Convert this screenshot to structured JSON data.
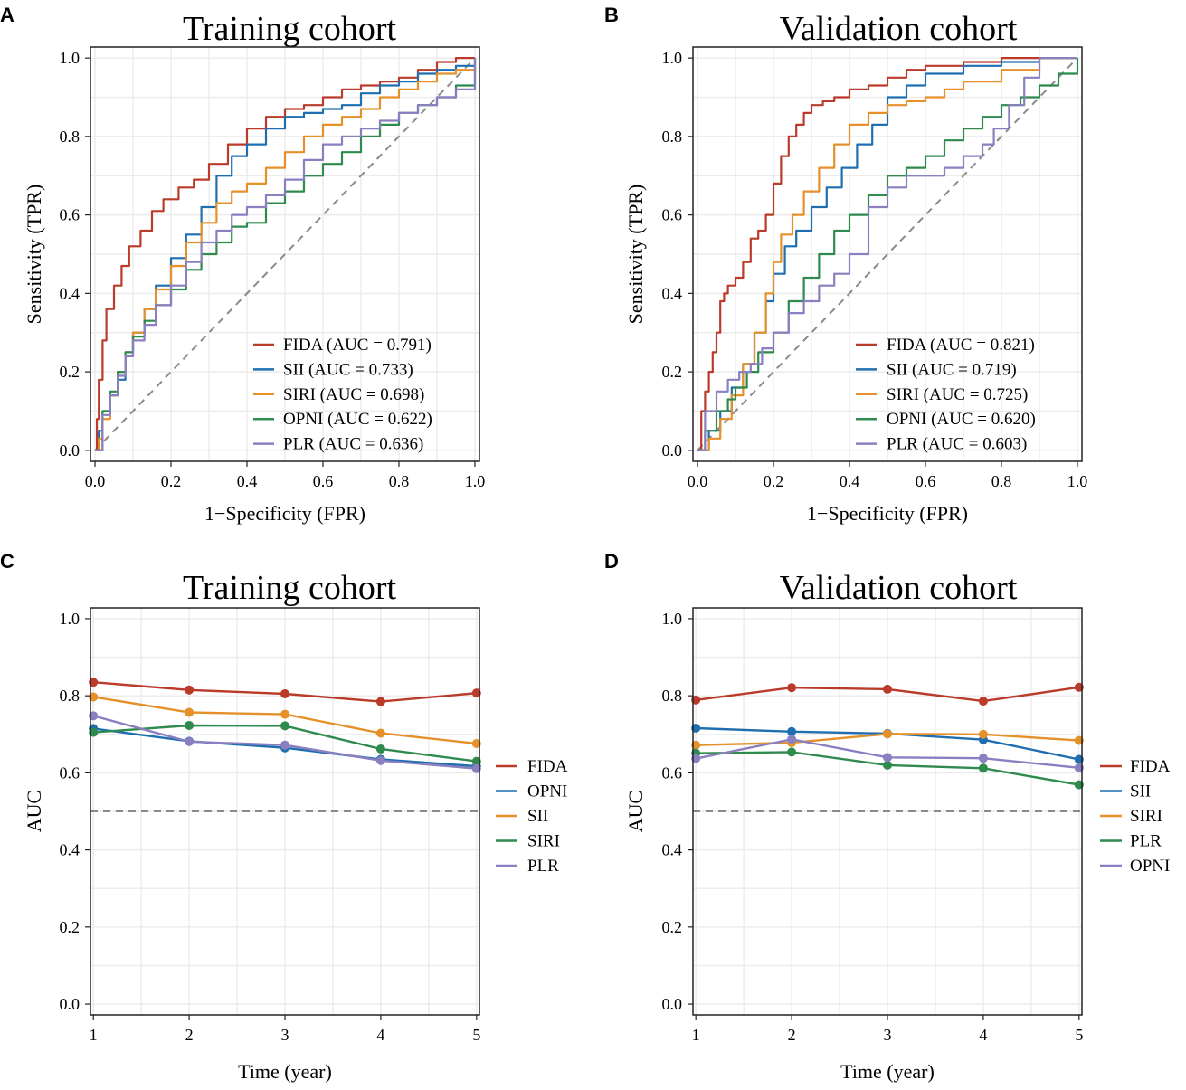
{
  "chart_data": [
    {
      "panel": "A",
      "type": "line",
      "title": "Training cohort",
      "xlabel": "1−Specificity (FPR)",
      "ylabel": "Sensitivity (TPR)",
      "xlim": [
        0,
        1
      ],
      "ylim": [
        0,
        1
      ],
      "xticks": [
        "0.0",
        "0.2",
        "0.4",
        "0.6",
        "0.8",
        "1.0"
      ],
      "yticks": [
        "0.0",
        "0.2",
        "0.4",
        "0.6",
        "0.8",
        "1.0"
      ],
      "grid": true,
      "legend_position": "bottom-right",
      "reference_line": "diagonal",
      "series": [
        {
          "name": "FIDA",
          "legend": "FIDA (AUC = 0.791)",
          "color": "#BB3B2A",
          "x": [
            0,
            0.005,
            0.01,
            0.02,
            0.03,
            0.05,
            0.07,
            0.09,
            0.12,
            0.15,
            0.18,
            0.22,
            0.26,
            0.3,
            0.35,
            0.4,
            0.45,
            0.5,
            0.55,
            0.6,
            0.65,
            0.7,
            0.75,
            0.8,
            0.85,
            0.9,
            0.95,
            1.0
          ],
          "y": [
            0,
            0.08,
            0.18,
            0.28,
            0.36,
            0.42,
            0.47,
            0.52,
            0.56,
            0.61,
            0.64,
            0.67,
            0.69,
            0.73,
            0.78,
            0.82,
            0.85,
            0.87,
            0.88,
            0.9,
            0.92,
            0.93,
            0.94,
            0.95,
            0.97,
            0.99,
            1.0,
            1.0
          ]
        },
        {
          "name": "SII",
          "legend": "SII (AUC = 0.733)",
          "color": "#1F6FB0",
          "x": [
            0,
            0.01,
            0.02,
            0.04,
            0.06,
            0.08,
            0.1,
            0.13,
            0.16,
            0.2,
            0.24,
            0.28,
            0.32,
            0.36,
            0.4,
            0.45,
            0.5,
            0.55,
            0.6,
            0.65,
            0.7,
            0.75,
            0.8,
            0.85,
            0.9,
            0.95,
            1.0
          ],
          "y": [
            0,
            0.05,
            0.1,
            0.14,
            0.18,
            0.24,
            0.3,
            0.36,
            0.42,
            0.49,
            0.55,
            0.62,
            0.7,
            0.75,
            0.78,
            0.82,
            0.85,
            0.86,
            0.87,
            0.88,
            0.91,
            0.93,
            0.94,
            0.96,
            0.97,
            0.98,
            1.0
          ]
        },
        {
          "name": "SIRI",
          "legend": "SIRI (AUC = 0.698)",
          "color": "#E6902A",
          "x": [
            0,
            0.01,
            0.02,
            0.04,
            0.06,
            0.08,
            0.1,
            0.13,
            0.16,
            0.2,
            0.24,
            0.28,
            0.32,
            0.36,
            0.4,
            0.45,
            0.5,
            0.55,
            0.6,
            0.65,
            0.7,
            0.75,
            0.8,
            0.85,
            0.9,
            0.95,
            1.0
          ],
          "y": [
            0,
            0.03,
            0.08,
            0.14,
            0.2,
            0.25,
            0.3,
            0.36,
            0.41,
            0.47,
            0.53,
            0.58,
            0.63,
            0.66,
            0.68,
            0.72,
            0.76,
            0.8,
            0.83,
            0.85,
            0.87,
            0.9,
            0.92,
            0.94,
            0.96,
            0.97,
            1.0
          ]
        },
        {
          "name": "OPNI",
          "legend": "OPNI (AUC = 0.622)",
          "color": "#2F8A4E",
          "x": [
            0,
            0.02,
            0.04,
            0.06,
            0.08,
            0.1,
            0.13,
            0.16,
            0.2,
            0.24,
            0.28,
            0.32,
            0.36,
            0.4,
            0.45,
            0.5,
            0.55,
            0.6,
            0.65,
            0.7,
            0.75,
            0.8,
            0.85,
            0.9,
            0.95,
            1.0
          ],
          "y": [
            0,
            0.1,
            0.15,
            0.2,
            0.25,
            0.29,
            0.33,
            0.37,
            0.41,
            0.46,
            0.5,
            0.53,
            0.57,
            0.58,
            0.63,
            0.66,
            0.7,
            0.73,
            0.76,
            0.8,
            0.83,
            0.86,
            0.88,
            0.9,
            0.93,
            1.0
          ]
        },
        {
          "name": "PLR",
          "legend": "PLR (AUC = 0.636)",
          "color": "#8A7FC0",
          "x": [
            0,
            0.02,
            0.04,
            0.06,
            0.08,
            0.1,
            0.13,
            0.16,
            0.2,
            0.24,
            0.28,
            0.32,
            0.36,
            0.4,
            0.45,
            0.5,
            0.55,
            0.6,
            0.65,
            0.7,
            0.75,
            0.8,
            0.85,
            0.9,
            0.95,
            1.0
          ],
          "y": [
            0,
            0.09,
            0.14,
            0.19,
            0.24,
            0.28,
            0.32,
            0.37,
            0.42,
            0.48,
            0.53,
            0.56,
            0.6,
            0.62,
            0.65,
            0.69,
            0.74,
            0.78,
            0.8,
            0.82,
            0.84,
            0.86,
            0.88,
            0.9,
            0.92,
            1.0
          ]
        }
      ]
    },
    {
      "panel": "B",
      "type": "line",
      "title": "Validation cohort",
      "xlabel": "1−Specificity (FPR)",
      "ylabel": "Sensitivity (TPR)",
      "xlim": [
        0,
        1
      ],
      "ylim": [
        0,
        1
      ],
      "xticks": [
        "0.0",
        "0.2",
        "0.4",
        "0.6",
        "0.8",
        "1.0"
      ],
      "yticks": [
        "0.0",
        "0.2",
        "0.4",
        "0.6",
        "0.8",
        "1.0"
      ],
      "grid": true,
      "legend_position": "bottom-right",
      "reference_line": "diagonal",
      "series": [
        {
          "name": "FIDA",
          "legend": "FIDA (AUC = 0.821)",
          "color": "#BB3B2A",
          "x": [
            0,
            0.01,
            0.02,
            0.03,
            0.04,
            0.05,
            0.06,
            0.07,
            0.08,
            0.1,
            0.12,
            0.14,
            0.16,
            0.18,
            0.2,
            0.22,
            0.24,
            0.26,
            0.28,
            0.3,
            0.33,
            0.36,
            0.4,
            0.45,
            0.5,
            0.55,
            0.6,
            0.7,
            0.8,
            0.9,
            1.0
          ],
          "y": [
            0,
            0.1,
            0.15,
            0.2,
            0.25,
            0.3,
            0.38,
            0.4,
            0.42,
            0.44,
            0.48,
            0.54,
            0.56,
            0.6,
            0.68,
            0.75,
            0.8,
            0.83,
            0.86,
            0.88,
            0.89,
            0.9,
            0.92,
            0.93,
            0.95,
            0.97,
            0.98,
            0.99,
            1.0,
            1.0,
            1.0
          ]
        },
        {
          "name": "SII",
          "legend": "SII (AUC = 0.719)",
          "color": "#1F6FB0",
          "x": [
            0,
            0.03,
            0.06,
            0.09,
            0.12,
            0.15,
            0.18,
            0.2,
            0.23,
            0.26,
            0.3,
            0.34,
            0.38,
            0.42,
            0.46,
            0.5,
            0.55,
            0.6,
            0.7,
            0.8,
            0.9,
            1.0
          ],
          "y": [
            0,
            0.05,
            0.1,
            0.16,
            0.22,
            0.3,
            0.38,
            0.45,
            0.52,
            0.56,
            0.62,
            0.67,
            0.72,
            0.78,
            0.83,
            0.9,
            0.93,
            0.96,
            0.98,
            0.99,
            1.0,
            1.0
          ]
        },
        {
          "name": "SIRI",
          "legend": "SIRI (AUC = 0.725)",
          "color": "#E6902A",
          "x": [
            0,
            0.03,
            0.06,
            0.09,
            0.12,
            0.15,
            0.18,
            0.2,
            0.22,
            0.25,
            0.28,
            0.32,
            0.36,
            0.4,
            0.45,
            0.5,
            0.55,
            0.6,
            0.65,
            0.7,
            0.8,
            0.9,
            1.0
          ],
          "y": [
            0,
            0.03,
            0.08,
            0.14,
            0.22,
            0.3,
            0.4,
            0.48,
            0.55,
            0.6,
            0.66,
            0.72,
            0.78,
            0.83,
            0.86,
            0.88,
            0.89,
            0.9,
            0.92,
            0.94,
            0.97,
            1.0,
            1.0
          ]
        },
        {
          "name": "OPNI",
          "legend": "OPNI (AUC = 0.620)",
          "color": "#2F8A4E",
          "x": [
            0,
            0.02,
            0.05,
            0.08,
            0.1,
            0.13,
            0.16,
            0.2,
            0.24,
            0.28,
            0.32,
            0.36,
            0.4,
            0.45,
            0.5,
            0.55,
            0.6,
            0.65,
            0.7,
            0.75,
            0.8,
            0.85,
            0.9,
            0.95,
            1.0
          ],
          "y": [
            0,
            0.05,
            0.1,
            0.13,
            0.16,
            0.2,
            0.25,
            0.3,
            0.38,
            0.44,
            0.5,
            0.56,
            0.6,
            0.65,
            0.7,
            0.72,
            0.75,
            0.79,
            0.82,
            0.85,
            0.88,
            0.9,
            0.93,
            0.96,
            1.0
          ]
        },
        {
          "name": "PLR",
          "legend": "PLR (AUC = 0.603)",
          "color": "#8A7FC0",
          "x": [
            0,
            0.02,
            0.05,
            0.08,
            0.11,
            0.14,
            0.17,
            0.2,
            0.24,
            0.28,
            0.32,
            0.36,
            0.4,
            0.45,
            0.5,
            0.55,
            0.6,
            0.65,
            0.7,
            0.75,
            0.78,
            0.82,
            0.86,
            0.9,
            0.95,
            1.0
          ],
          "y": [
            0,
            0.1,
            0.15,
            0.18,
            0.2,
            0.22,
            0.26,
            0.3,
            0.35,
            0.38,
            0.42,
            0.45,
            0.5,
            0.62,
            0.67,
            0.7,
            0.7,
            0.72,
            0.75,
            0.78,
            0.82,
            0.88,
            0.95,
            1.0,
            1.0,
            1.0
          ]
        }
      ]
    },
    {
      "panel": "C",
      "type": "line",
      "title": "Training cohort",
      "xlabel": "Time (year)",
      "ylabel": "AUC",
      "x": [
        1,
        2,
        3,
        4,
        5
      ],
      "xlim": [
        0.97,
        5.03
      ],
      "ylim": [
        0,
        1
      ],
      "xticks": [
        "1",
        "2",
        "3",
        "4",
        "5"
      ],
      "yticks": [
        "0.0",
        "0.2",
        "0.4",
        "0.6",
        "0.8",
        "1.0"
      ],
      "grid": true,
      "markers": true,
      "legend_position": "right",
      "reference_line_y": 0.5,
      "series": [
        {
          "name": "FIDA",
          "color": "#BB3B2A",
          "values": [
            0.835,
            0.815,
            0.805,
            0.785,
            0.807
          ]
        },
        {
          "name": "OPNI",
          "color": "#1F6FB0",
          "values": [
            0.715,
            0.682,
            0.665,
            0.635,
            0.617
          ]
        },
        {
          "name": "SII",
          "color": "#E6902A",
          "values": [
            0.797,
            0.757,
            0.752,
            0.703,
            0.676
          ]
        },
        {
          "name": "SIRI",
          "color": "#2F8A4E",
          "values": [
            0.705,
            0.723,
            0.722,
            0.662,
            0.63
          ]
        },
        {
          "name": "PLR",
          "color": "#8A7FC0",
          "values": [
            0.748,
            0.681,
            0.672,
            0.632,
            0.611
          ]
        }
      ]
    },
    {
      "panel": "D",
      "type": "line",
      "title": "Validation cohort",
      "xlabel": "Time (year)",
      "ylabel": "AUC",
      "x": [
        1,
        2,
        3,
        4,
        5
      ],
      "xlim": [
        0.97,
        5.03
      ],
      "ylim": [
        0,
        1
      ],
      "xticks": [
        "1",
        "2",
        "3",
        "4",
        "5"
      ],
      "yticks": [
        "0.0",
        "0.2",
        "0.4",
        "0.6",
        "0.8",
        "1.0"
      ],
      "grid": true,
      "markers": true,
      "legend_position": "right",
      "reference_line_y": 0.5,
      "series": [
        {
          "name": "FIDA",
          "color": "#BB3B2A",
          "values": [
            0.789,
            0.821,
            0.817,
            0.786,
            0.822
          ]
        },
        {
          "name": "SII",
          "color": "#1F6FB0",
          "values": [
            0.716,
            0.707,
            0.702,
            0.686,
            0.635
          ]
        },
        {
          "name": "SIRI",
          "color": "#E6902A",
          "values": [
            0.672,
            0.678,
            0.701,
            0.7,
            0.684
          ]
        },
        {
          "name": "PLR",
          "color": "#2F8A4E",
          "values": [
            0.651,
            0.654,
            0.62,
            0.612,
            0.569
          ]
        },
        {
          "name": "OPNI",
          "color": "#8A7FC0",
          "values": [
            0.637,
            0.687,
            0.64,
            0.638,
            0.613
          ]
        }
      ]
    }
  ]
}
